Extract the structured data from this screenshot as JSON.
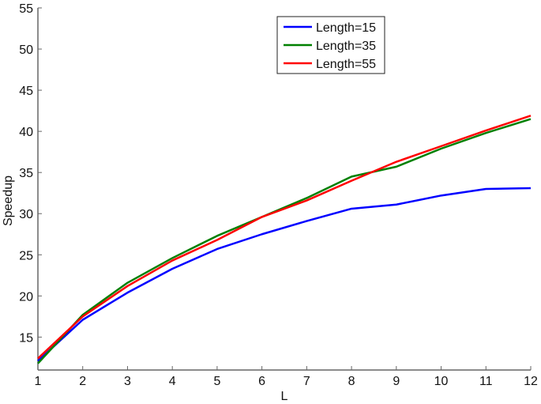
{
  "chart_data": {
    "type": "line",
    "title": "",
    "xlabel": "L",
    "ylabel": "Speedup",
    "x": [
      1,
      2,
      3,
      4,
      5,
      6,
      7,
      8,
      9,
      10,
      11,
      12
    ],
    "xlim": [
      1,
      12
    ],
    "ylim": [
      11,
      55
    ],
    "xticks": [
      1,
      2,
      3,
      4,
      5,
      6,
      7,
      8,
      9,
      10,
      11,
      12
    ],
    "yticks": [
      15,
      20,
      25,
      30,
      35,
      40,
      45,
      50,
      55
    ],
    "grid": false,
    "legend_position": "top-center",
    "series": [
      {
        "name": "Length=15",
        "color": "#0000ff",
        "values": [
          12.1,
          17.1,
          20.4,
          23.3,
          25.7,
          27.5,
          29.1,
          30.6,
          31.1,
          32.2,
          33.0,
          33.1
        ]
      },
      {
        "name": "Length=35",
        "color": "#008000",
        "values": [
          11.8,
          17.7,
          21.6,
          24.6,
          27.3,
          29.6,
          31.9,
          34.5,
          35.7,
          37.9,
          39.8,
          41.5
        ]
      },
      {
        "name": "Length=55",
        "color": "#ff0000",
        "values": [
          12.4,
          17.5,
          21.2,
          24.3,
          26.8,
          29.6,
          31.6,
          34.0,
          36.3,
          38.2,
          40.1,
          41.9
        ]
      }
    ]
  }
}
